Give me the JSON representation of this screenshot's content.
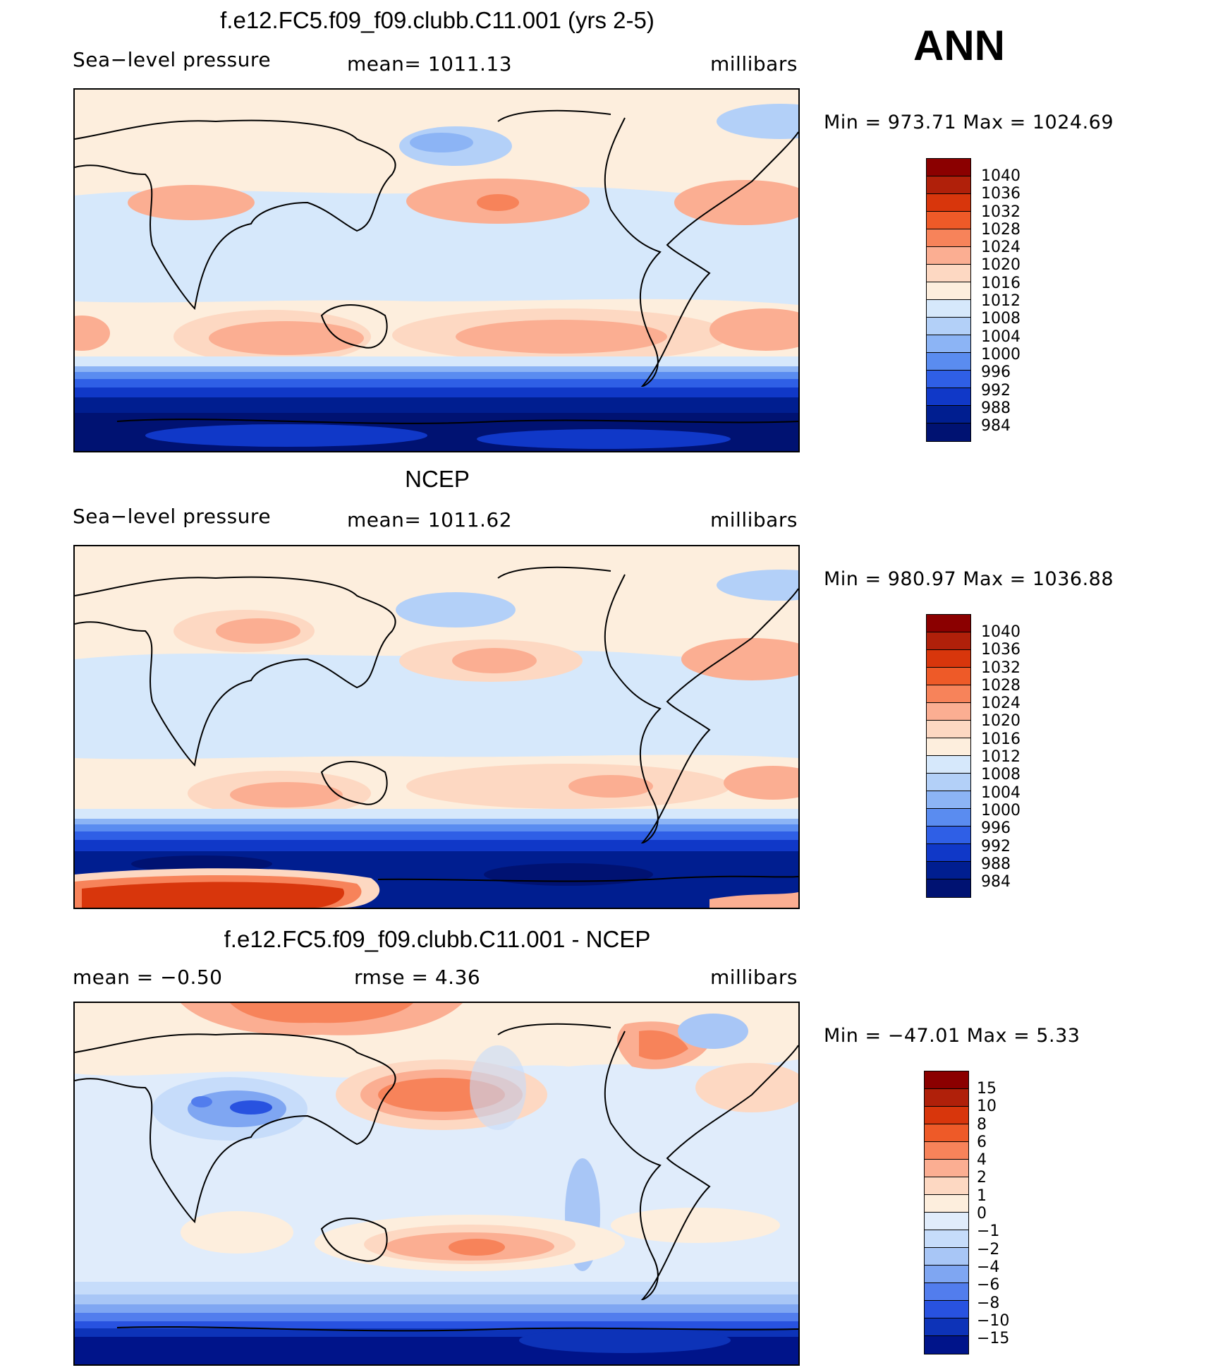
{
  "season": "ANN",
  "panels": [
    {
      "title": "f.e12.FC5.f09_f09.clubb.C11.001 (yrs 2-5)",
      "left_label": "Sea−level pressure",
      "center_label": "mean=  1011.13",
      "units": "millibars",
      "minmax": "Min  =  973.71  Max  =  1024.69",
      "levels": [
        "1040",
        "1036",
        "1032",
        "1028",
        "1024",
        "1020",
        "1016",
        "1012",
        "1008",
        "1004",
        "1000",
        "996",
        "992",
        "988",
        "984"
      ]
    },
    {
      "title": "NCEP",
      "left_label": "Sea−level pressure",
      "center_label": "mean=  1011.62",
      "units": "millibars",
      "minmax": "Min  =  980.97  Max  =  1036.88",
      "levels": [
        "1040",
        "1036",
        "1032",
        "1028",
        "1024",
        "1020",
        "1016",
        "1012",
        "1008",
        "1004",
        "1000",
        "996",
        "992",
        "988",
        "984"
      ]
    },
    {
      "title": "f.e12.FC5.f09_f09.clubb.C11.001 - NCEP",
      "left_label": "mean  =    −0.50",
      "center_label": "rmse  =     4.36",
      "units": "millibars",
      "minmax": "Min  =  −47.01  Max  =      5.33",
      "levels": [
        "15",
        "10",
        "8",
        "6",
        "4",
        "2",
        "1",
        "0",
        "−1",
        "−2",
        "−4",
        "−6",
        "−8",
        "−10",
        "−15"
      ]
    }
  ],
  "colors": {
    "abs_scale": [
      "#8b0000",
      "#b0200a",
      "#d8360c",
      "#ee5a28",
      "#f7835a",
      "#fbae92",
      "#fdd8c2",
      "#fdeedd",
      "#d6e8fb",
      "#b3d0f8",
      "#8cb4f5",
      "#5a8cf0",
      "#2f5fe6",
      "#1038c8",
      "#001e90",
      "#001272"
    ],
    "diff_scale": [
      "#8b0000",
      "#b0200a",
      "#d8360c",
      "#ee5a28",
      "#f7835a",
      "#fbae92",
      "#fdd8c2",
      "#fdeedd",
      "#e0ecfb",
      "#c6dcfa",
      "#a8c6f6",
      "#7fa6f2",
      "#527ded",
      "#2852e0",
      "#0d33b8",
      "#00148a"
    ]
  }
}
